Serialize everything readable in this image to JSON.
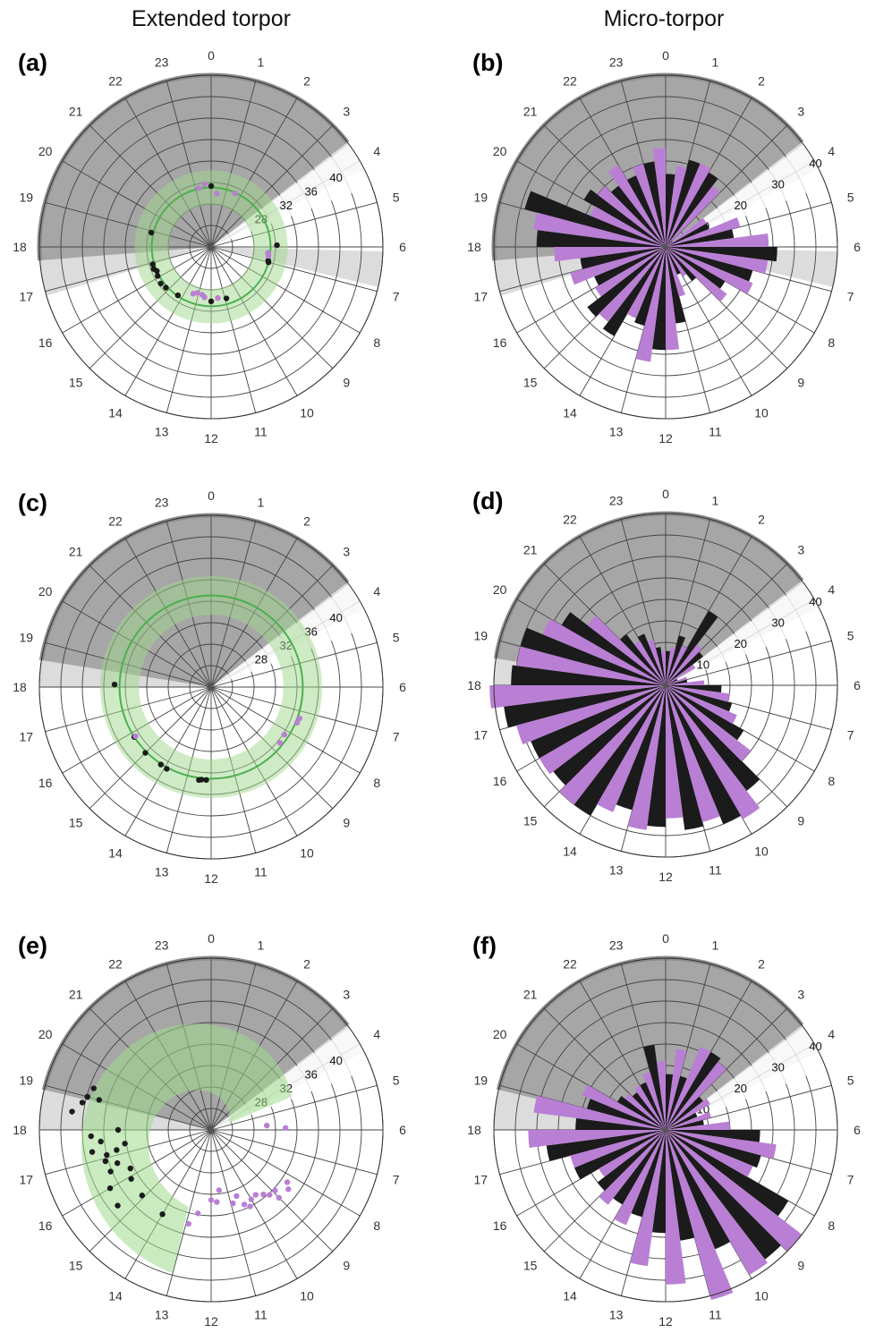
{
  "column_titles": [
    "Extended torpor",
    "Micro-torpor"
  ],
  "colors": {
    "night": "#a6a6a6",
    "twilight": "#dcdcdc",
    "group_black": "#1b1b1b",
    "group_purple": "#b97fd4",
    "envelope": "#9fd88c",
    "fit_line": "#4caf50",
    "grid": "#444444"
  },
  "chart_data": [
    {
      "panel": "(a)",
      "type": "scatter",
      "coord": "polar",
      "hours": [
        "0",
        "1",
        "2",
        "3",
        "4",
        "5",
        "6",
        "7",
        "8",
        "9",
        "10",
        "11",
        "12",
        "13",
        "14",
        "15",
        "16",
        "17",
        "18",
        "19",
        "20",
        "21",
        "22",
        "23"
      ],
      "ring_labels": [
        "28",
        "32",
        "36",
        "40"
      ],
      "ring_range": [
        20,
        44
      ],
      "night_hours": [
        17.7,
        27.5
      ],
      "twilight_hours": [
        [
          3.5,
          4.2
        ],
        [
          6.1,
          6.9
        ],
        [
          16.9,
          17.7
        ]
      ],
      "series": [
        {
          "name": "",
          "color": "black",
          "points": [
            [
              0,
              28.5
            ],
            [
              5.9,
              29.2
            ],
            [
              6.9,
              28.2
            ],
            [
              7.0,
              28.3
            ],
            [
              10.9,
              27.5
            ],
            [
              12.0,
              27.6
            ],
            [
              14.3,
              28.2
            ],
            [
              15.2,
              28.5
            ],
            [
              15.6,
              28.7
            ],
            [
              16.1,
              28.5
            ],
            [
              16.4,
              28.3
            ],
            [
              16.6,
              28.6
            ],
            [
              16.9,
              28.5
            ],
            [
              18.9,
              28.6
            ]
          ]
        },
        {
          "name": "",
          "color": "purple",
          "points": [
            [
              0.4,
              27.5
            ],
            [
              1.6,
              28.2
            ],
            [
              6.4,
              28.0
            ],
            [
              6.6,
              28.1
            ],
            [
              11.5,
              27.2
            ],
            [
              12.5,
              27.1
            ],
            [
              12.7,
              26.8
            ],
            [
              13.1,
              26.7
            ],
            [
              13.4,
              27.0
            ],
            [
              23.2,
              28.4
            ],
            [
              23.6,
              28.8
            ]
          ]
        }
      ],
      "fit": {
        "center_r": 28.3,
        "band": 0.8
      }
    },
    {
      "panel": "(b)",
      "type": "bar",
      "coord": "polar",
      "hours": [
        "0",
        "1",
        "2",
        "3",
        "4",
        "5",
        "6",
        "7",
        "8",
        "9",
        "10",
        "11",
        "12",
        "13",
        "14",
        "15",
        "16",
        "17",
        "18",
        "19",
        "20",
        "21",
        "22",
        "23"
      ],
      "ring_labels": [
        "10",
        "20",
        "30",
        "40"
      ],
      "ring_range": [
        0,
        40
      ],
      "night_hours": [
        17.7,
        27.5
      ],
      "twilight_hours": [
        [
          3.5,
          4.2
        ],
        [
          6.1,
          6.9
        ],
        [
          16.9,
          17.7
        ]
      ],
      "series": [
        {
          "name": "",
          "color": "black",
          "values": [
            17,
            21,
            20,
            2,
            11,
            16,
            26,
            21,
            16,
            10,
            7,
            18,
            24,
            19,
            24,
            23,
            18,
            20,
            30,
            34,
            22,
            18,
            18,
            20
          ]
        },
        {
          "name": "",
          "color": "purple",
          "values": [
            19,
            21,
            18,
            11,
            18,
            24,
            24,
            22,
            18,
            8,
            12,
            24,
            27,
            18,
            22,
            19,
            23,
            26,
            31,
            19,
            20,
            22,
            20,
            23
          ]
        }
      ]
    },
    {
      "panel": "(c)",
      "type": "scatter",
      "coord": "polar",
      "hours": [
        "0",
        "1",
        "2",
        "3",
        "4",
        "5",
        "6",
        "7",
        "8",
        "9",
        "10",
        "11",
        "12",
        "13",
        "14",
        "15",
        "16",
        "17",
        "18",
        "19",
        "20",
        "21",
        "22",
        "23"
      ],
      "ring_labels": [
        "28",
        "32",
        "36",
        "40"
      ],
      "ring_range": [
        20,
        44
      ],
      "night_hours": [
        18.6,
        27.5
      ],
      "twilight_hours": [
        [
          3.5,
          4.2
        ],
        [
          18.0,
          18.6
        ]
      ],
      "series": [
        {
          "name": "",
          "color": "black",
          "points": [
            [
              12.2,
              33.0
            ],
            [
              12.4,
              33.0
            ],
            [
              12.5,
              33.1
            ],
            [
              13.9,
              33.0
            ],
            [
              14.2,
              32.9
            ],
            [
              15.0,
              33.0
            ],
            [
              15.8,
              32.8
            ],
            [
              18.1,
              33.5
            ]
          ]
        },
        {
          "name": "",
          "color": "purple",
          "points": [
            [
              8.2,
              32.2
            ],
            [
              8.6,
              32.4
            ],
            [
              7.3,
              33.1
            ],
            [
              7.5,
              33.0
            ],
            [
              15.8,
              32.6
            ]
          ]
        }
      ],
      "fit": {
        "center_r": 32.8,
        "band": 0.9
      }
    },
    {
      "panel": "(d)",
      "type": "bar",
      "coord": "polar",
      "hours": [
        "0",
        "1",
        "2",
        "3",
        "4",
        "5",
        "6",
        "7",
        "8",
        "9",
        "10",
        "11",
        "12",
        "13",
        "14",
        "15",
        "16",
        "17",
        "18",
        "19",
        "20",
        "21",
        "22",
        "23"
      ],
      "ring_labels": [
        "10",
        "20",
        "30",
        "40"
      ],
      "ring_range": [
        0,
        40
      ],
      "night_hours": [
        18.6,
        27.5
      ],
      "twilight_hours": [
        [
          3.5,
          4.2
        ],
        [
          18.0,
          18.6
        ]
      ],
      "series": [
        {
          "name": "",
          "color": "black",
          "values": [
            8,
            12,
            20,
            11,
            3,
            5,
            13,
            16,
            21,
            31,
            35,
            34,
            33,
            30,
            35,
            33,
            34,
            38,
            36,
            35,
            28,
            15,
            13,
            9
          ]
        },
        {
          "name": "",
          "color": "purple",
          "values": [
            9,
            10,
            12,
            8,
            5,
            9,
            15,
            18,
            25,
            36,
            33,
            31,
            34,
            32,
            35,
            34,
            36,
            41,
            35,
            31,
            23,
            12,
            11,
            8
          ]
        }
      ]
    },
    {
      "panel": "(e)",
      "type": "scatter",
      "coord": "polar",
      "hours": [
        "0",
        "1",
        "2",
        "3",
        "4",
        "5",
        "6",
        "7",
        "8",
        "9",
        "10",
        "11",
        "12",
        "13",
        "14",
        "15",
        "16",
        "17",
        "18",
        "19",
        "20",
        "21",
        "22",
        "23"
      ],
      "ring_labels": [
        "28",
        "32",
        "36",
        "40"
      ],
      "ring_range": [
        20,
        44
      ],
      "night_hours": [
        18.9,
        27.5
      ],
      "twilight_hours": [
        [
          3.5,
          4.2
        ],
        [
          18.0,
          18.9
        ]
      ],
      "series": [
        {
          "name": "",
          "color": "black",
          "points": [
            [
              14.0,
              33.6
            ],
            [
              15.4,
              36.8
            ],
            [
              16.0,
              36.3
            ],
            [
              16.5,
              35.2
            ],
            [
              16.9,
              35.4
            ],
            [
              17.1,
              35.0
            ],
            [
              17.3,
              36.9
            ],
            [
              17.6,
              35.5
            ],
            [
              17.8,
              36.8
            ],
            [
              18.5,
              39.6
            ],
            [
              18.8,
              38.4
            ],
            [
              19.0,
              36.2
            ],
            [
              19.3,
              37.4
            ],
            [
              19.0,
              37.9
            ],
            [
              17.2,
              33.5
            ],
            [
              16.7,
              33.9
            ],
            [
              16.3,
              32.5
            ],
            [
              15.9,
              33.1
            ],
            [
              18.0,
              33.0
            ],
            [
              17.4,
              32.2
            ],
            [
              15.1,
              33.3
            ]
          ]
        },
        {
          "name": "",
          "color": "purple",
          "points": [
            [
              5.7,
              27.8
            ],
            [
              5.9,
              30.4
            ],
            [
              8.3,
              32.9
            ],
            [
              8.5,
              33.6
            ],
            [
              9.0,
              33.4
            ],
            [
              9.2,
              32.2
            ],
            [
              9.4,
              31.6
            ],
            [
              9.7,
              31.0
            ],
            [
              10.0,
              31.2
            ],
            [
              10.6,
              29.9
            ],
            [
              10.9,
              30.7
            ],
            [
              11.5,
              28.5
            ],
            [
              11.7,
              30.1
            ],
            [
              12.0,
              29.8
            ],
            [
              12.6,
              31.8
            ],
            [
              12.9,
              33.5
            ],
            [
              10.2,
              32.0
            ],
            [
              8.9,
              32.3
            ],
            [
              10.4,
              31.4
            ]
          ]
        }
      ]
    },
    {
      "panel": "(f)",
      "type": "bar",
      "coord": "polar",
      "hours": [
        "0",
        "1",
        "2",
        "3",
        "4",
        "5",
        "6",
        "7",
        "8",
        "9",
        "10",
        "11",
        "12",
        "13",
        "14",
        "15",
        "16",
        "17",
        "18",
        "19",
        "20",
        "21",
        "22",
        "23"
      ],
      "ring_labels": [
        "10",
        "20",
        "30",
        "40"
      ],
      "ring_range": [
        0,
        40
      ],
      "night_hours": [
        18.9,
        27.5
      ],
      "twilight_hours": [
        [
          3.5,
          4.2
        ],
        [
          18.0,
          18.9
        ]
      ],
      "series": [
        {
          "name": "",
          "color": "black",
          "values": [
            13,
            13,
            21,
            11,
            8,
            9,
            22,
            23,
            33,
            38,
            30,
            26,
            24,
            21,
            20,
            20,
            23,
            28,
            21,
            19,
            13,
            11,
            12,
            20
          ]
        },
        {
          "name": "",
          "color": "purple",
          "values": [
            19,
            21,
            20,
            12,
            11,
            15,
            26,
            22,
            40,
            39,
            41,
            36,
            32,
            24,
            22,
            18,
            23,
            32,
            31,
            21,
            12,
            12,
            14,
            16
          ]
        }
      ]
    }
  ]
}
